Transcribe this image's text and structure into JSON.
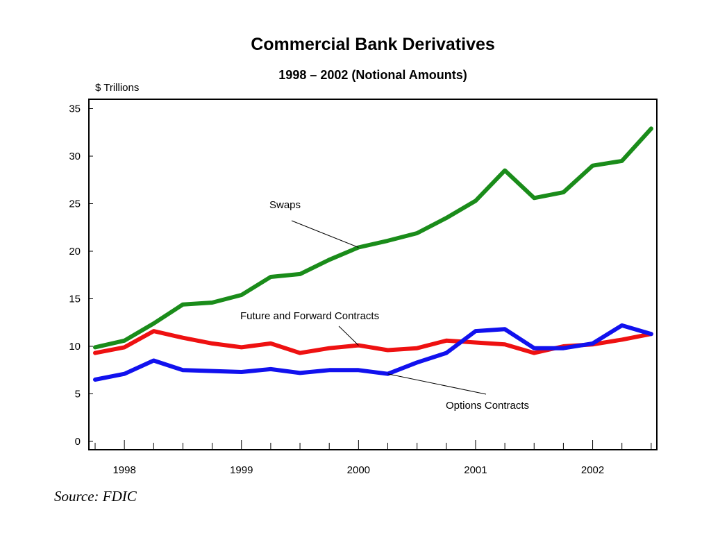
{
  "chart_data": {
    "type": "line",
    "title": "Commercial Bank Derivatives",
    "subtitle": "1998 – 2002 (Notional Amounts)",
    "ylabel": "$ Trillions",
    "xlabel": "",
    "ylim": [
      0,
      35
    ],
    "yticks": [
      0,
      5,
      10,
      15,
      20,
      25,
      30,
      35
    ],
    "x_ticks": [
      "1998",
      "1999",
      "2000",
      "2001",
      "2002"
    ],
    "x_periods": [
      "1997Q4",
      "1998Q1",
      "1998Q2",
      "1998Q3",
      "1998Q4",
      "1999Q1",
      "1999Q2",
      "1999Q3",
      "1999Q4",
      "2000Q1",
      "2000Q2",
      "2000Q3",
      "2000Q4",
      "2001Q1",
      "2001Q2",
      "2001Q3",
      "2001Q4",
      "2002Q1",
      "2002Q2",
      "2002Q3"
    ],
    "grid": false,
    "series": [
      {
        "name": "Swaps",
        "color": "#1a8c1a",
        "values": [
          9.9,
          10.6,
          12.4,
          14.4,
          14.6,
          15.4,
          17.3,
          17.6,
          19.1,
          20.4,
          21.1,
          21.9,
          23.5,
          25.3,
          28.5,
          25.6,
          26.2,
          29.0,
          29.5,
          32.9
        ]
      },
      {
        "name": "Future and Forward Contracts",
        "color": "#ee1111",
        "values": [
          9.3,
          9.9,
          11.6,
          10.9,
          10.3,
          9.9,
          10.3,
          9.3,
          9.8,
          10.1,
          9.6,
          9.8,
          10.6,
          10.4,
          10.2,
          9.3,
          10.0,
          10.2,
          10.7,
          11.3
        ]
      },
      {
        "name": "Options Contracts",
        "color": "#1111ee",
        "values": [
          6.5,
          7.1,
          8.5,
          7.5,
          7.4,
          7.3,
          7.6,
          7.2,
          7.5,
          7.5,
          7.1,
          8.3,
          9.3,
          11.6,
          11.8,
          9.8,
          9.8,
          10.3,
          12.2,
          11.3
        ]
      }
    ],
    "annotations": [
      {
        "text": "Swaps",
        "series": "Swaps",
        "period_index": 9
      },
      {
        "text": "Future and Forward Contracts",
        "series": "Future and Forward Contracts",
        "period_index": 9
      },
      {
        "text": "Options Contracts",
        "series": "Options Contracts",
        "period_index": 10
      }
    ]
  },
  "source": "Source: FDIC"
}
